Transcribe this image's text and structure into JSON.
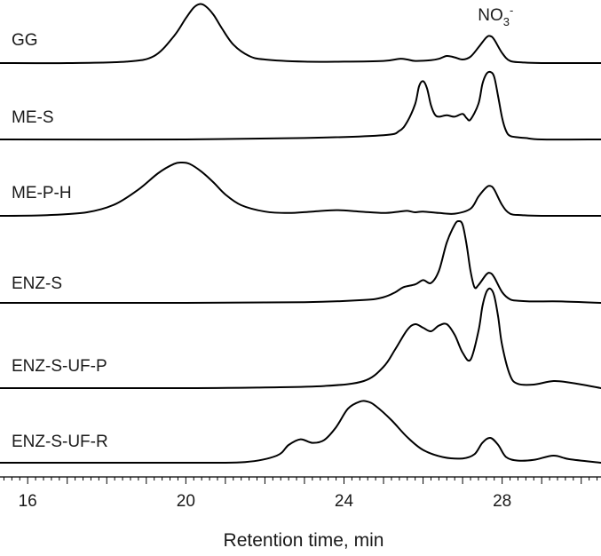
{
  "chart_data": {
    "type": "line",
    "xlabel": "Retention time, min",
    "xlim": [
      15.3,
      30.5
    ],
    "xticks": [
      16,
      20,
      24,
      28
    ],
    "annotation": {
      "text": "NO",
      "sub": "3",
      "sup": "-",
      "x": 27.7
    },
    "series": [
      {
        "name": "GG",
        "x": [
          15.3,
          17.0,
          18.5,
          19.2,
          19.7,
          20.0,
          20.2,
          20.35,
          20.5,
          20.7,
          20.9,
          21.2,
          21.6,
          22.0,
          23.0,
          24.0,
          25.0,
          25.4,
          25.6,
          25.8,
          26.2,
          26.4,
          26.6,
          26.8,
          27.0,
          27.2,
          27.4,
          27.6,
          27.7,
          27.8,
          28.0,
          28.2,
          28.5,
          29.0,
          30.5
        ],
        "values": [
          0,
          0,
          0.02,
          0.1,
          0.38,
          0.63,
          0.78,
          0.83,
          0.8,
          0.68,
          0.5,
          0.26,
          0.1,
          0.05,
          0.02,
          0.02,
          0.03,
          0.06,
          0.05,
          0.03,
          0.04,
          0.06,
          0.1,
          0.08,
          0.05,
          0.09,
          0.22,
          0.36,
          0.38,
          0.33,
          0.14,
          0.03,
          0.01,
          0,
          0
        ]
      },
      {
        "name": "ME-S",
        "x": [
          15.3,
          20.0,
          23.0,
          25.0,
          25.4,
          25.6,
          25.8,
          25.9,
          26.0,
          26.1,
          26.2,
          26.3,
          26.4,
          26.6,
          26.8,
          27.0,
          27.1,
          27.2,
          27.4,
          27.5,
          27.6,
          27.7,
          27.8,
          27.9,
          28.0,
          28.1,
          28.2,
          28.4,
          28.6,
          29.0,
          30.5
        ],
        "values": [
          0,
          0,
          0.02,
          0.06,
          0.12,
          0.25,
          0.5,
          0.75,
          0.82,
          0.72,
          0.48,
          0.35,
          0.32,
          0.34,
          0.32,
          0.36,
          0.3,
          0.28,
          0.5,
          0.78,
          0.92,
          0.95,
          0.88,
          0.6,
          0.3,
          0.12,
          0.05,
          0.03,
          0.02,
          0,
          0
        ]
      },
      {
        "name": "ME-P-H",
        "x": [
          15.3,
          16.5,
          17.5,
          18.2,
          18.8,
          19.3,
          19.7,
          19.9,
          20.1,
          20.4,
          20.7,
          21.0,
          21.4,
          22.0,
          22.6,
          23.2,
          23.8,
          24.4,
          25.0,
          25.4,
          25.6,
          25.8,
          26.0,
          26.4,
          26.8,
          27.2,
          27.4,
          27.6,
          27.7,
          27.8,
          28.0,
          28.2,
          28.5,
          29.0,
          30.5
        ],
        "values": [
          0,
          0.01,
          0.05,
          0.16,
          0.37,
          0.6,
          0.73,
          0.75,
          0.73,
          0.62,
          0.47,
          0.3,
          0.15,
          0.06,
          0.04,
          0.06,
          0.08,
          0.06,
          0.04,
          0.06,
          0.07,
          0.05,
          0.06,
          0.04,
          0.03,
          0.1,
          0.27,
          0.4,
          0.42,
          0.37,
          0.15,
          0.03,
          0.01,
          0,
          0
        ]
      },
      {
        "name": "ENZ-S",
        "x": [
          15.3,
          20.0,
          23.0,
          24.5,
          25.0,
          25.3,
          25.5,
          25.8,
          26.0,
          26.2,
          26.4,
          26.6,
          26.8,
          26.9,
          27.0,
          27.1,
          27.2,
          27.3,
          27.4,
          27.6,
          27.7,
          27.8,
          28.0,
          28.2,
          28.4,
          28.8,
          29.5,
          30.5
        ],
        "values": [
          0,
          0,
          0.01,
          0.04,
          0.08,
          0.15,
          0.22,
          0.26,
          0.32,
          0.28,
          0.45,
          0.85,
          1.1,
          1.15,
          1.1,
          0.82,
          0.45,
          0.22,
          0.25,
          0.4,
          0.42,
          0.36,
          0.15,
          0.05,
          0.03,
          0.02,
          0.02,
          0
        ]
      },
      {
        "name": "ENZ-S-UF-P",
        "x": [
          15.3,
          20.0,
          22.0,
          23.5,
          24.5,
          25.0,
          25.3,
          25.6,
          25.8,
          26.0,
          26.2,
          26.4,
          26.6,
          26.8,
          27.0,
          27.2,
          27.4,
          27.5,
          27.6,
          27.7,
          27.8,
          27.9,
          28.0,
          28.2,
          28.4,
          28.8,
          29.3,
          29.8,
          30.5
        ],
        "values": [
          0,
          0,
          0.01,
          0.03,
          0.1,
          0.3,
          0.55,
          0.82,
          0.9,
          0.85,
          0.8,
          0.88,
          0.9,
          0.75,
          0.5,
          0.4,
          0.8,
          1.15,
          1.35,
          1.4,
          1.3,
          1.0,
          0.6,
          0.18,
          0.06,
          0.05,
          0.1,
          0.07,
          0
        ]
      },
      {
        "name": "ENZ-S-UF-R",
        "x": [
          15.3,
          20.0,
          21.5,
          22.3,
          22.6,
          22.9,
          23.2,
          23.5,
          23.8,
          24.1,
          24.4,
          24.6,
          24.8,
          25.2,
          25.6,
          26.0,
          26.5,
          27.0,
          27.3,
          27.5,
          27.7,
          27.9,
          28.1,
          28.4,
          28.8,
          29.3,
          29.7,
          30.5
        ],
        "values": [
          0,
          0,
          0.01,
          0.1,
          0.25,
          0.33,
          0.28,
          0.32,
          0.5,
          0.76,
          0.86,
          0.86,
          0.8,
          0.6,
          0.36,
          0.18,
          0.08,
          0.06,
          0.12,
          0.28,
          0.35,
          0.25,
          0.08,
          0.03,
          0.04,
          0.1,
          0.05,
          0
        ]
      }
    ]
  }
}
